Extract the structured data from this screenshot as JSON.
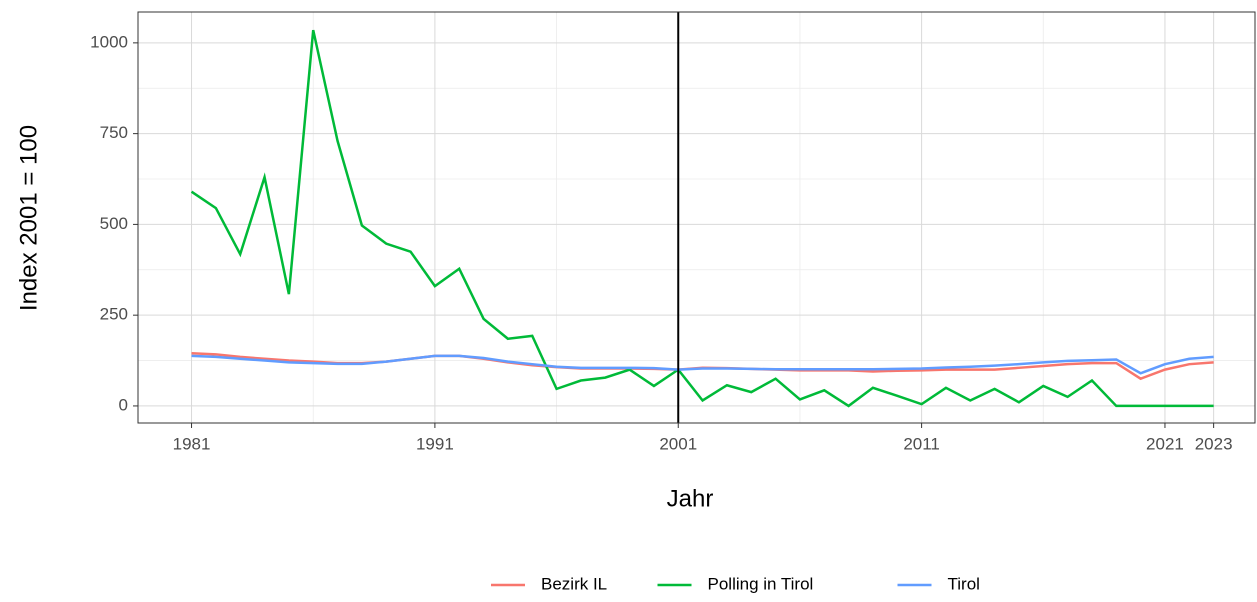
{
  "chart_data": {
    "type": "line",
    "xlabel": "Jahr",
    "ylabel": "Index 2001 = 100",
    "x": [
      1981,
      1982,
      1983,
      1984,
      1985,
      1986,
      1987,
      1988,
      1989,
      1990,
      1991,
      1992,
      1993,
      1994,
      1995,
      1996,
      1997,
      1998,
      1999,
      2000,
      2001,
      2002,
      2003,
      2004,
      2005,
      2006,
      2007,
      2008,
      2009,
      2010,
      2011,
      2012,
      2013,
      2014,
      2015,
      2016,
      2017,
      2018,
      2019,
      2020,
      2021,
      2022,
      2023
    ],
    "series": [
      {
        "name": "Bezirk IL",
        "color": "#F8766D",
        "values": [
          145,
          142,
          135,
          130,
          125,
          122,
          118,
          118,
          122,
          130,
          138,
          138,
          130,
          120,
          112,
          107,
          103,
          103,
          103,
          102,
          100,
          105,
          104,
          102,
          100,
          98,
          98,
          98,
          95,
          97,
          98,
          100,
          100,
          100,
          105,
          110,
          115,
          118,
          118,
          75,
          100,
          115,
          120
        ]
      },
      {
        "name": "Polling in Tirol",
        "color": "#00BA38",
        "values": [
          590,
          545,
          418,
          630,
          308,
          1035,
          730,
          497,
          447,
          425,
          330,
          378,
          240,
          185,
          193,
          47,
          70,
          78,
          100,
          55,
          100,
          15,
          57,
          38,
          75,
          18,
          43,
          0,
          50,
          28,
          5,
          50,
          15,
          47,
          10,
          55,
          25,
          70,
          0,
          0,
          0,
          0,
          0
        ]
      },
      {
        "name": "Tirol",
        "color": "#619CFF",
        "values": [
          138,
          135,
          130,
          125,
          120,
          118,
          116,
          116,
          122,
          130,
          138,
          138,
          132,
          122,
          115,
          108,
          105,
          105,
          105,
          104,
          100,
          103,
          103,
          102,
          101,
          101,
          101,
          101,
          101,
          102,
          103,
          106,
          108,
          111,
          115,
          120,
          124,
          126,
          128,
          90,
          115,
          130,
          135
        ]
      }
    ],
    "xlim": [
      1978.8,
      2024.7
    ],
    "xticks": [
      1981,
      1991,
      2001,
      2011,
      2021,
      2023
    ],
    "ylim": [
      -47,
      1085
    ],
    "yticks": [
      0,
      250,
      500,
      750,
      1000
    ],
    "vline": 2001,
    "grid": true,
    "legend": "bottom"
  }
}
